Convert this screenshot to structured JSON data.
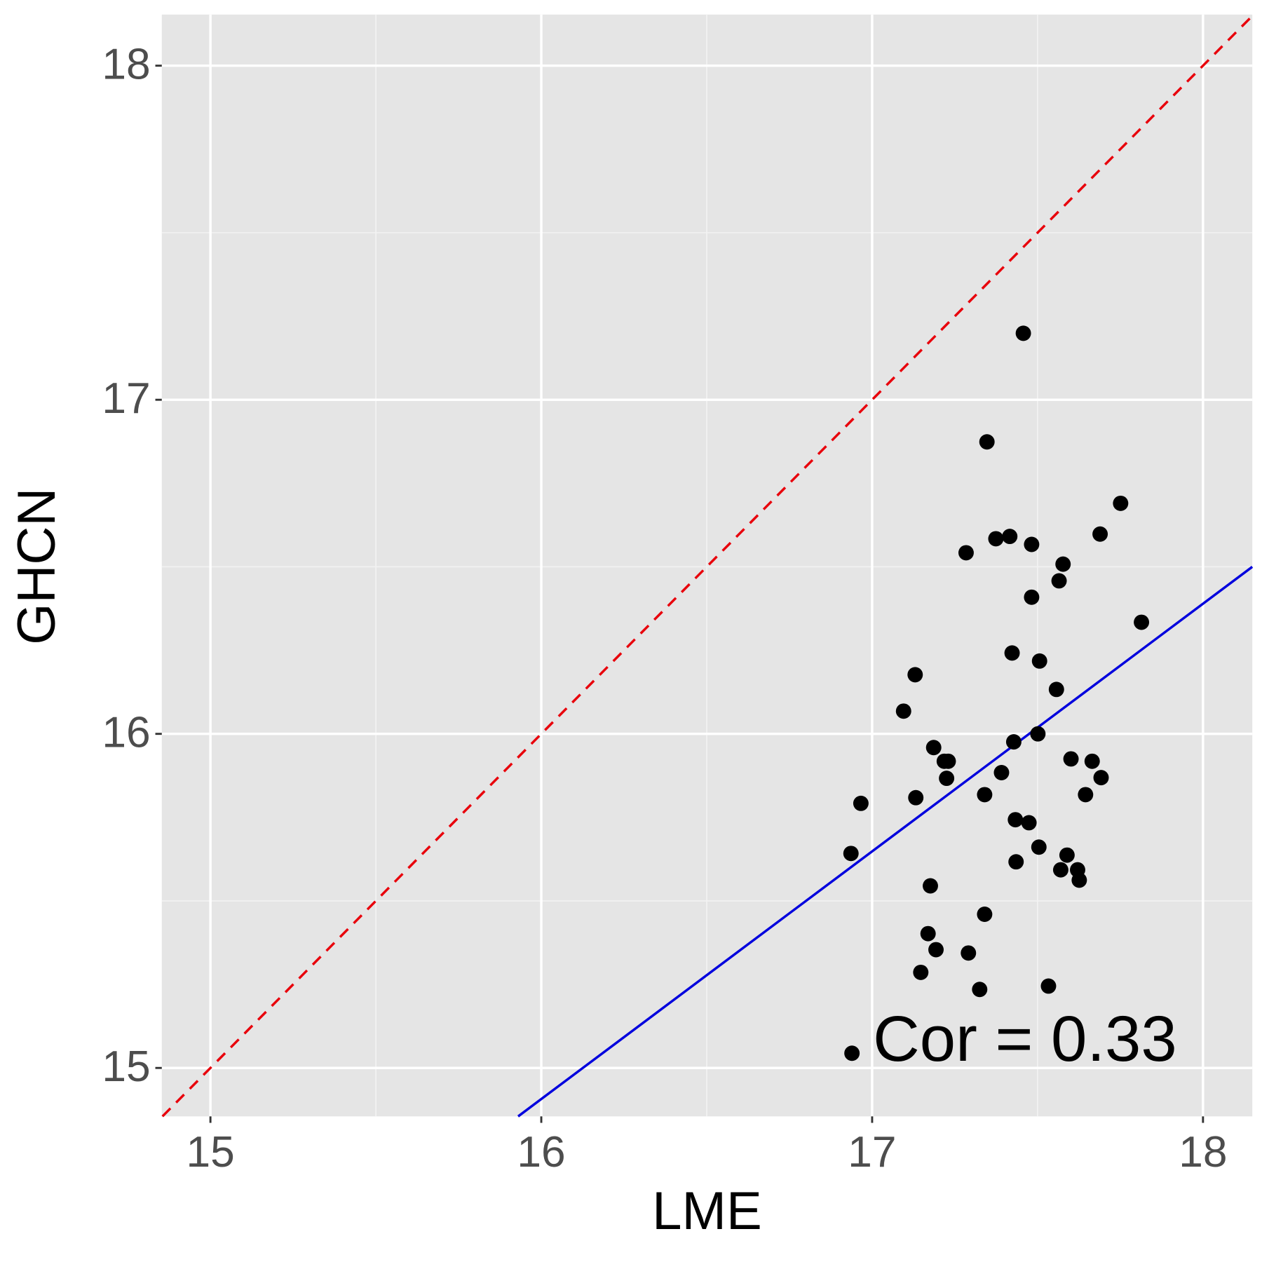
{
  "chart_data": {
    "type": "scatter",
    "xlabel": "LME",
    "ylabel": "GHCN",
    "annotation": "Cor = 0.33",
    "xlim": [
      14.853,
      18.149
    ],
    "ylim": [
      14.855,
      18.153
    ],
    "xticks": [
      15,
      16,
      17,
      18
    ],
    "yticks": [
      15,
      16,
      17,
      18
    ],
    "grid": true,
    "color": "#000000",
    "fit_line": {
      "color": "#0000dd",
      "x": [
        15.93,
        18.149
      ],
      "y": [
        14.855,
        16.5
      ]
    },
    "reference_line": {
      "color": "#e8000b"
    },
    "x": [
      17.457,
      17.347,
      17.751,
      17.689,
      17.374,
      17.416,
      17.482,
      17.284,
      17.577,
      17.565,
      17.482,
      17.814,
      17.423,
      17.506,
      17.13,
      17.557,
      17.095,
      17.501,
      17.428,
      17.186,
      17.218,
      17.23,
      17.601,
      17.665,
      17.391,
      17.225,
      17.692,
      17.34,
      17.132,
      17.645,
      16.966,
      17.433,
      17.474,
      17.504,
      16.936,
      17.589,
      17.435,
      17.57,
      17.621,
      17.626,
      17.176,
      17.34,
      17.169,
      17.193,
      17.291,
      17.147,
      17.533,
      17.325,
      16.939
    ],
    "values": [
      17.199,
      16.874,
      16.69,
      16.598,
      16.584,
      16.591,
      16.567,
      16.542,
      16.508,
      16.458,
      16.409,
      16.334,
      16.242,
      16.218,
      16.177,
      16.133,
      16.068,
      16.0,
      15.976,
      15.959,
      15.918,
      15.918,
      15.925,
      15.918,
      15.884,
      15.867,
      15.869,
      15.818,
      15.809,
      15.818,
      15.792,
      15.743,
      15.734,
      15.661,
      15.642,
      15.637,
      15.617,
      15.593,
      15.593,
      15.562,
      15.545,
      15.46,
      15.402,
      15.354,
      15.344,
      15.286,
      15.245,
      15.235,
      15.044
    ]
  }
}
